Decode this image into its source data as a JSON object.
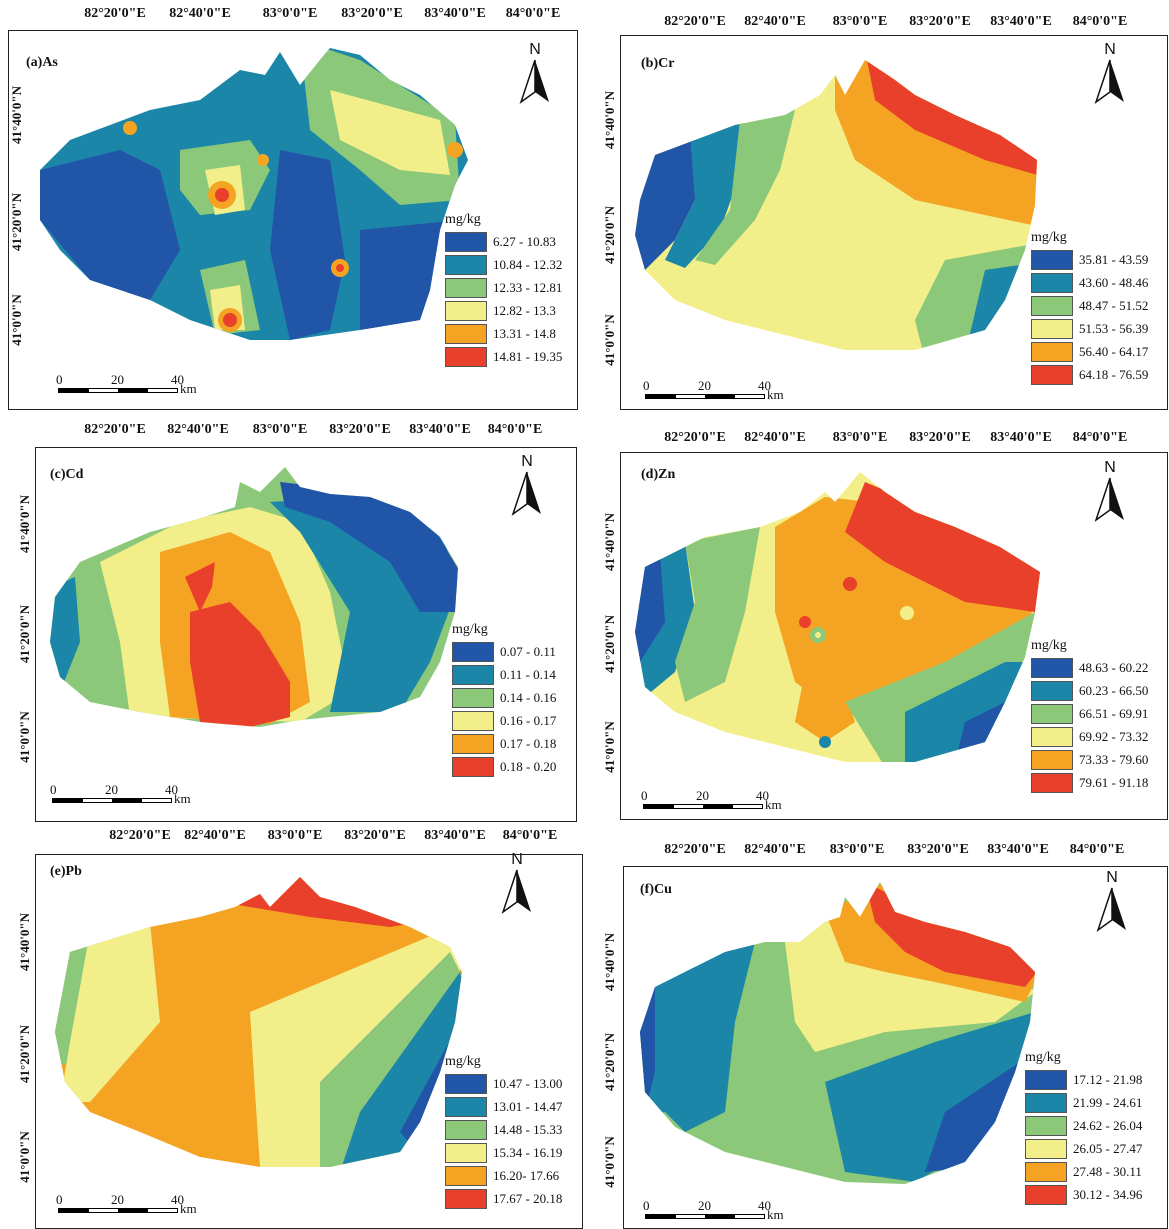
{
  "longitude_labels": [
    "82°20'0\"E",
    "82°40'0\"E",
    "83°0'0\"E",
    "83°20'0\"E",
    "83°40'0\"E",
    "84°0'0\"E"
  ],
  "latitude_labels": [
    "41°40'0\"N",
    "41°20'0\"N",
    "41°0'0\"N"
  ],
  "north_label": "N",
  "scale": {
    "ticks": [
      "0",
      "20",
      "40"
    ],
    "unit": "km"
  },
  "legend_unit": "mg/kg",
  "colors": [
    "#2155a8",
    "#1b86a8",
    "#8cc87a",
    "#f2ef8a",
    "#f5a323",
    "#e8402a"
  ],
  "panels": [
    {
      "title": "(a)As",
      "classes": [
        "6.27 - 10.83",
        "10.84 - 12.32",
        "12.33 - 12.81",
        "12.82 - 13.3",
        "13.31 - 14.8",
        "14.81 - 19.35"
      ]
    },
    {
      "title": "(b)Cr",
      "classes": [
        "35.81 - 43.59",
        "43.60 - 48.46",
        "48.47 - 51.52",
        "51.53 - 56.39",
        "56.40 - 64.17",
        "64.18 - 76.59"
      ]
    },
    {
      "title": "(c)Cd",
      "classes": [
        "0.07 - 0.11",
        "0.11 - 0.14",
        "0.14 - 0.16",
        "0.16 - 0.17",
        "0.17 - 0.18",
        "0.18 - 0.20"
      ]
    },
    {
      "title": "(d)Zn",
      "classes": [
        "48.63 - 60.22",
        "60.23 - 66.50",
        "66.51 - 69.91",
        "69.92 - 73.32",
        "73.33 - 79.60",
        "79.61 - 91.18"
      ]
    },
    {
      "title": "(e)Pb",
      "classes": [
        "10.47 - 13.00",
        "13.01 - 14.47",
        "14.48 - 15.33",
        "15.34 - 16.19",
        "16.20- 17.66",
        "17.67 - 20.18"
      ]
    },
    {
      "title": "(f)Cu",
      "classes": [
        "17.12 - 21.98",
        "21.99 - 24.61",
        "24.62 - 26.04",
        "26.05 - 27.47",
        "27.48 - 30.11",
        "30.12 - 34.96"
      ]
    }
  ]
}
